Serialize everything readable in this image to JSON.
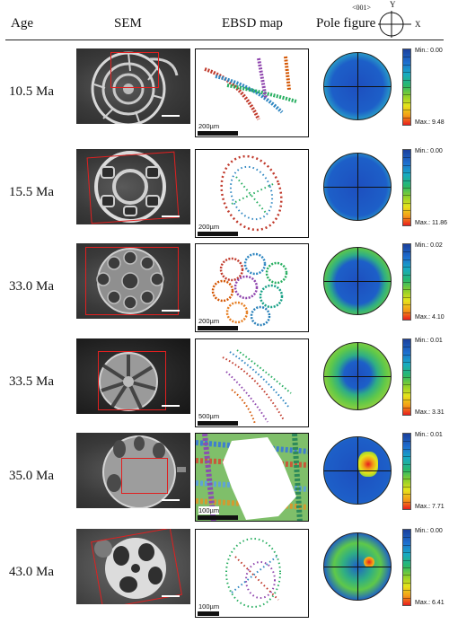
{
  "header": {
    "age": "Age",
    "sem": "SEM",
    "ebsd": "EBSD map",
    "pole": "Pole figure",
    "axis_direction": "<001>",
    "axis_y": "Y",
    "axis_x": "X"
  },
  "rows": [
    {
      "age": "10.5 Ma",
      "ebsd_scale": "200µm",
      "cbar_min": "Min.: 0.00",
      "cbar_max": "Max.: 9.48"
    },
    {
      "age": "15.5 Ma",
      "ebsd_scale": "200µm",
      "cbar_min": "Min.: 0.00",
      "cbar_max": "Max.: 11.86"
    },
    {
      "age": "33.0 Ma",
      "ebsd_scale": "200µm",
      "cbar_min": "Min.: 0.02",
      "cbar_max": "Max.: 4.10"
    },
    {
      "age": "33.5 Ma",
      "ebsd_scale": "500µm",
      "cbar_min": "Min.: 0.01",
      "cbar_max": "Max.: 3.31"
    },
    {
      "age": "35.0 Ma",
      "ebsd_scale": "100µm",
      "cbar_min": "Min.: 0.01",
      "cbar_max": "Max.: 7.71"
    },
    {
      "age": "43.0 Ma",
      "ebsd_scale": "100µm",
      "cbar_min": "Min.: 0.00",
      "cbar_max": "Max.: 6.41"
    }
  ],
  "colors": {
    "roi_box": "#e02020",
    "pole_low": "#1d5fc8",
    "pole_mid": "#2fb85a",
    "pole_high": "#e81d1d"
  }
}
